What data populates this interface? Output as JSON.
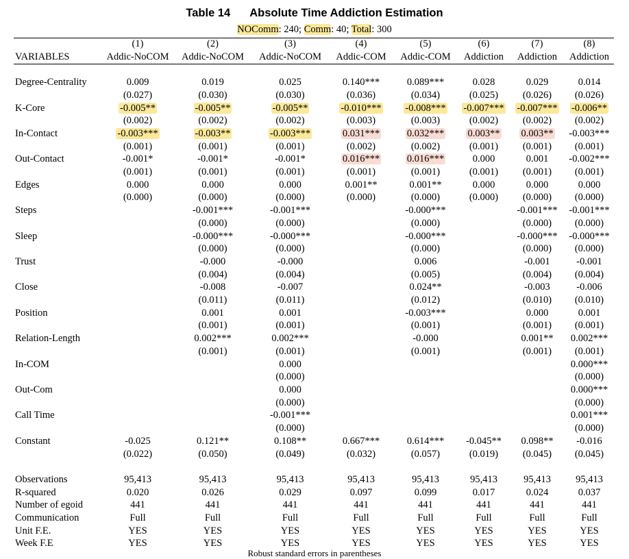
{
  "table": {
    "label": "Table 14",
    "title": "Absolute Time Addiction Estimation",
    "subtitle": [
      {
        "text": "NOComm",
        "hl": true
      },
      {
        "text": ": 240; ",
        "hl": false
      },
      {
        "text": "Comm",
        "hl": true
      },
      {
        "text": ": 40; ",
        "hl": false
      },
      {
        "text": "Total",
        "hl": true
      },
      {
        "text": ": 300",
        "hl": false
      }
    ],
    "column_numbers": [
      "(1)",
      "(2)",
      "(3)",
      "(4)",
      "(5)",
      "(6)",
      "(7)",
      "(8)"
    ],
    "header_label": "VARIABLES",
    "column_names": [
      "Addic-NoCOM",
      "Addic-NoCOM",
      "Addic-NoCOM",
      "Addic-COM",
      "Addic-COM",
      "Addiction",
      "Addiction",
      "Addiction"
    ],
    "highlight_colors": {
      "yellow": "#fbe89a",
      "pink": "#f8dcd3"
    },
    "coef_rows": [
      {
        "name": "Degree-Centrality",
        "coef": [
          "0.009",
          "0.019",
          "0.025",
          "0.140***",
          "0.089***",
          "0.028",
          "0.029",
          "0.014"
        ],
        "se": [
          "(0.027)",
          "(0.030)",
          "(0.030)",
          "(0.036)",
          "(0.034)",
          "(0.025)",
          "(0.026)",
          "(0.026)"
        ],
        "hl": [
          "",
          "",
          "",
          "",
          "",
          "",
          "",
          ""
        ]
      },
      {
        "name": "K-Core",
        "coef": [
          "-0.005**",
          "-0.005**",
          "-0.005**",
          "-0.010***",
          "-0.008***",
          "-0.007***",
          "-0.007***",
          "-0.006**"
        ],
        "se": [
          "(0.002)",
          "(0.002)",
          "(0.002)",
          "(0.003)",
          "(0.003)",
          "(0.002)",
          "(0.002)",
          "(0.002)"
        ],
        "hl": [
          "y",
          "y",
          "y",
          "y",
          "y",
          "y",
          "y",
          "y"
        ]
      },
      {
        "name": "In-Contact",
        "coef": [
          "-0.003***",
          "-0.003**",
          "-0.003***",
          "0.031***",
          "0.032***",
          "0.003**",
          "0.003**",
          "-0.003***"
        ],
        "se": [
          "(0.001)",
          "(0.001)",
          "(0.001)",
          "(0.002)",
          "(0.002)",
          "(0.001)",
          "(0.001)",
          "(0.001)"
        ],
        "hl": [
          "y",
          "y",
          "y",
          "p",
          "p",
          "p",
          "p",
          ""
        ]
      },
      {
        "name": "Out-Contact",
        "coef": [
          "-0.001*",
          "-0.001*",
          "-0.001*",
          "0.016***",
          "0.016***",
          "0.000",
          "0.001",
          "-0.002***"
        ],
        "se": [
          "(0.001)",
          "(0.001)",
          "(0.001)",
          "(0.001)",
          "(0.001)",
          "(0.001)",
          "(0.001)",
          "(0.001)"
        ],
        "hl": [
          "",
          "",
          "",
          "p",
          "p",
          "",
          "",
          ""
        ]
      },
      {
        "name": "Edges",
        "coef": [
          "0.000",
          "0.000",
          "0.000",
          "0.001**",
          "0.001**",
          "0.000",
          "0.000",
          "0.000"
        ],
        "se": [
          "(0.000)",
          "(0.000)",
          "(0.000)",
          "(0.000)",
          "(0.000)",
          "(0.000)",
          "(0.000)",
          "(0.000)"
        ],
        "hl": [
          "",
          "",
          "",
          "",
          "",
          "",
          "",
          ""
        ]
      },
      {
        "name": "Steps",
        "coef": [
          "",
          "-0.001***",
          "-0.001***",
          "",
          "-0.000***",
          "",
          "-0.001***",
          "-0.001***"
        ],
        "se": [
          "",
          "(0.000)",
          "(0.000)",
          "",
          "(0.000)",
          "",
          "(0.000)",
          "(0.000)"
        ],
        "hl": [
          "",
          "",
          "",
          "",
          "",
          "",
          "",
          ""
        ]
      },
      {
        "name": "Sleep",
        "coef": [
          "",
          "-0.000***",
          "-0.000***",
          "",
          "-0.000***",
          "",
          "-0.000***",
          "-0.000***"
        ],
        "se": [
          "",
          "(0.000)",
          "(0.000)",
          "",
          "(0.000)",
          "",
          "(0.000)",
          "(0.000)"
        ],
        "hl": [
          "",
          "",
          "",
          "",
          "",
          "",
          "",
          ""
        ]
      },
      {
        "name": "Trust",
        "coef": [
          "",
          "-0.000",
          "-0.000",
          "",
          "0.006",
          "",
          "-0.001",
          "-0.001"
        ],
        "se": [
          "",
          "(0.004)",
          "(0.004)",
          "",
          "(0.005)",
          "",
          "(0.004)",
          "(0.004)"
        ],
        "hl": [
          "",
          "",
          "",
          "",
          "",
          "",
          "",
          ""
        ]
      },
      {
        "name": "Close",
        "coef": [
          "",
          "-0.008",
          "-0.007",
          "",
          "0.024**",
          "",
          "-0.003",
          "-0.006"
        ],
        "se": [
          "",
          "(0.011)",
          "(0.011)",
          "",
          "(0.012)",
          "",
          "(0.010)",
          "(0.010)"
        ],
        "hl": [
          "",
          "",
          "",
          "",
          "",
          "",
          "",
          ""
        ]
      },
      {
        "name": "Position",
        "coef": [
          "",
          "0.001",
          "0.001",
          "",
          "-0.003***",
          "",
          "0.000",
          "0.001"
        ],
        "se": [
          "",
          "(0.001)",
          "(0.001)",
          "",
          "(0.001)",
          "",
          "(0.001)",
          "(0.001)"
        ],
        "hl": [
          "",
          "",
          "",
          "",
          "",
          "",
          "",
          ""
        ]
      },
      {
        "name": "Relation-Length",
        "coef": [
          "",
          "0.002***",
          "0.002***",
          "",
          "-0.000",
          "",
          "0.001**",
          "0.002***"
        ],
        "se": [
          "",
          "(0.001)",
          "(0.001)",
          "",
          "(0.001)",
          "",
          "(0.001)",
          "(0.001)"
        ],
        "hl": [
          "",
          "",
          "",
          "",
          "",
          "",
          "",
          ""
        ]
      },
      {
        "name": "In-COM",
        "coef": [
          "",
          "",
          "0.000",
          "",
          "",
          "",
          "",
          "0.000***"
        ],
        "se": [
          "",
          "",
          "(0.000)",
          "",
          "",
          "",
          "",
          "(0.000)"
        ],
        "hl": [
          "",
          "",
          "",
          "",
          "",
          "",
          "",
          ""
        ]
      },
      {
        "name": "Out-Com",
        "coef": [
          "",
          "",
          "0.000",
          "",
          "",
          "",
          "",
          "0.000***"
        ],
        "se": [
          "",
          "",
          "(0.000)",
          "",
          "",
          "",
          "",
          "(0.000)"
        ],
        "hl": [
          "",
          "",
          "",
          "",
          "",
          "",
          "",
          ""
        ]
      },
      {
        "name": "Call Time",
        "coef": [
          "",
          "",
          "-0.001***",
          "",
          "",
          "",
          "",
          "0.001***"
        ],
        "se": [
          "",
          "",
          "(0.000)",
          "",
          "",
          "",
          "",
          "(0.000)"
        ],
        "hl": [
          "",
          "",
          "",
          "",
          "",
          "",
          "",
          ""
        ]
      },
      {
        "name": "Constant",
        "coef": [
          "-0.025",
          "0.121**",
          "0.108**",
          "0.667***",
          "0.614***",
          "-0.045**",
          "0.098**",
          "-0.016"
        ],
        "se": [
          "(0.022)",
          "(0.050)",
          "(0.049)",
          "(0.032)",
          "(0.057)",
          "(0.019)",
          "(0.045)",
          "(0.045)"
        ],
        "hl": [
          "",
          "",
          "",
          "",
          "",
          "",
          "",
          ""
        ]
      }
    ],
    "stat_rows": [
      {
        "name": "Observations",
        "values": [
          "95,413",
          "95,413",
          "95,413",
          "95,413",
          "95,413",
          "95,413",
          "95,413",
          "95,413"
        ]
      },
      {
        "name": "R-squared",
        "values": [
          "0.020",
          "0.026",
          "0.029",
          "0.097",
          "0.099",
          "0.017",
          "0.024",
          "0.037"
        ]
      },
      {
        "name": "Number of egoid",
        "values": [
          "441",
          "441",
          "441",
          "441",
          "441",
          "441",
          "441",
          "441"
        ]
      },
      {
        "name": "Communication",
        "values": [
          "Full",
          "Full",
          "Full",
          "Full",
          "Full",
          "Full",
          "Full",
          "Full"
        ]
      },
      {
        "name": "Unit F.E.",
        "values": [
          "YES",
          "YES",
          "YES",
          "YES",
          "YES",
          "YES",
          "YES",
          "YES"
        ]
      },
      {
        "name": "Week F.E",
        "values": [
          "YES",
          "YES",
          "YES",
          "YES",
          "YES",
          "YES",
          "YES",
          "YES"
        ]
      }
    ],
    "footnote": "Robust standard errors in parentheses"
  }
}
